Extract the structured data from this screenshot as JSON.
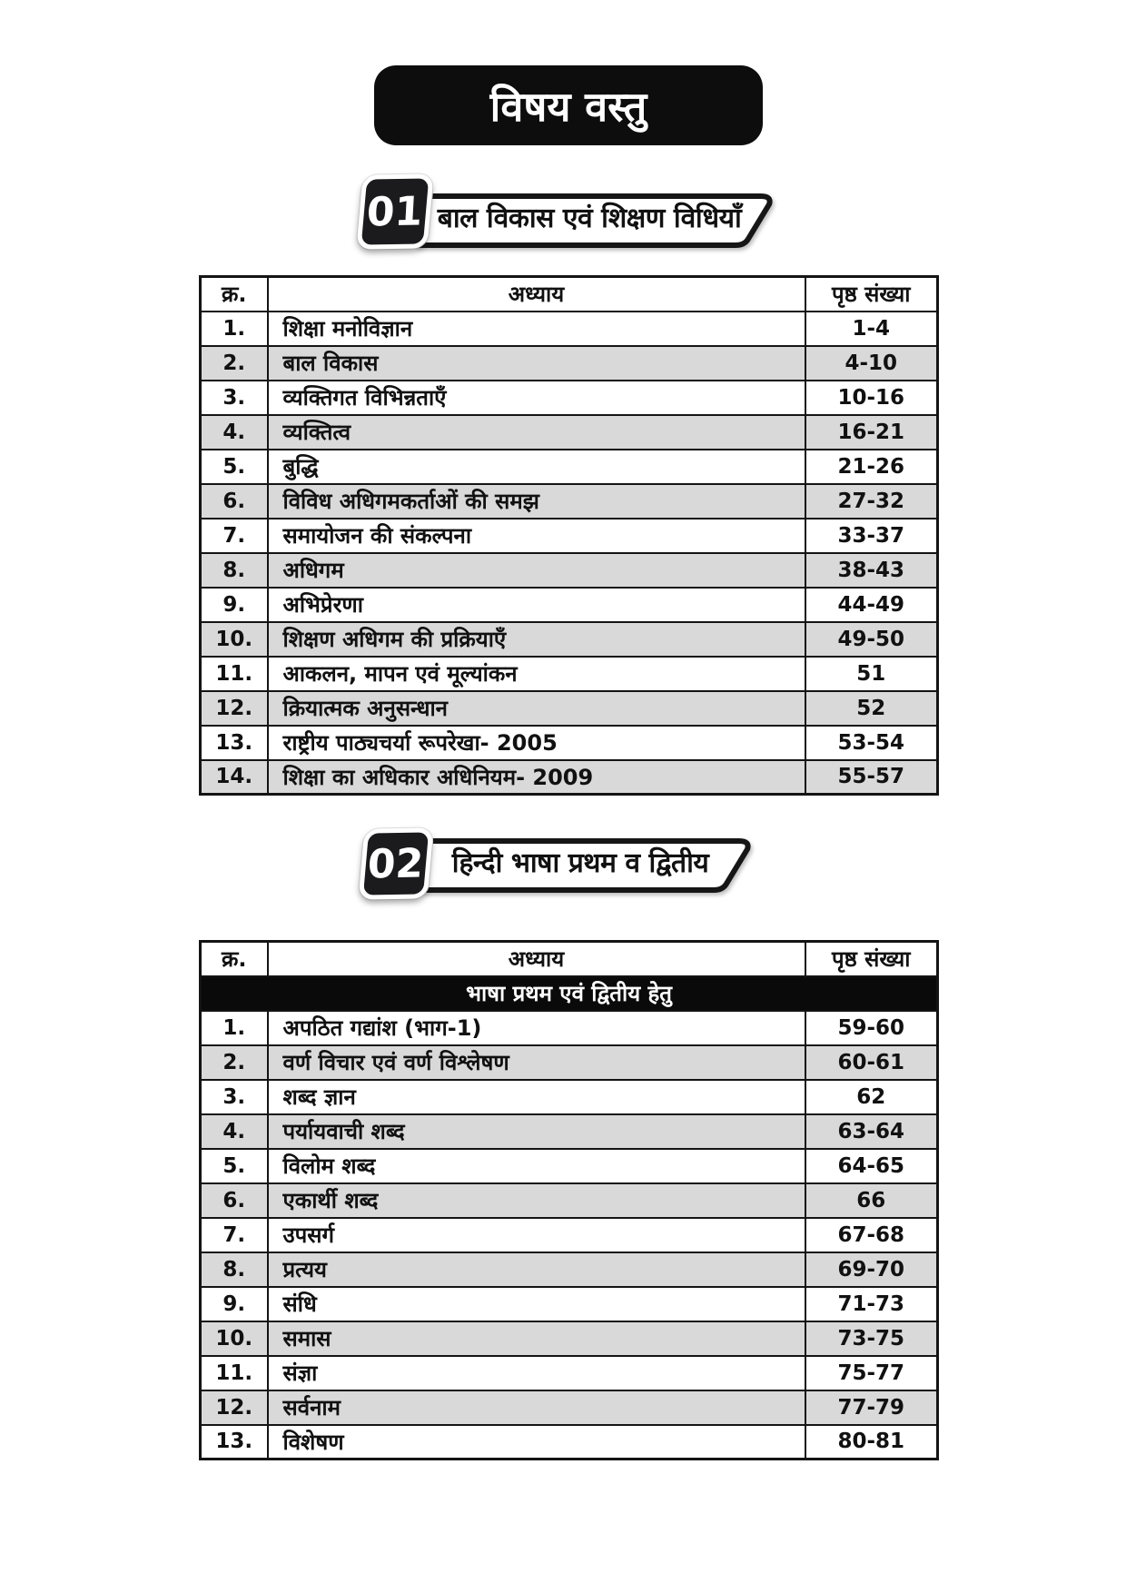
{
  "page": {
    "title": "विषय वस्तु"
  },
  "table_headers": {
    "serial": "क्र.",
    "chapter": "अध्याय",
    "pages": "पृष्ठ संख्या"
  },
  "sections": [
    {
      "number": "01",
      "title": "बाल विकास एवं शिक्षण विधियाँ",
      "rows": [
        {
          "sn": "1.",
          "chapter": "शिक्षा मनोविज्ञान",
          "pages": "1-4"
        },
        {
          "sn": "2.",
          "chapter": "बाल विकास",
          "pages": "4-10"
        },
        {
          "sn": "3.",
          "chapter": "व्यक्तिगत विभिन्नताएँ",
          "pages": "10-16"
        },
        {
          "sn": "4.",
          "chapter": "व्यक्तित्व",
          "pages": "16-21"
        },
        {
          "sn": "5.",
          "chapter": "बुद्धि",
          "pages": "21-26"
        },
        {
          "sn": "6.",
          "chapter": "विविध अधिगमकर्ताओं की समझ",
          "pages": "27-32"
        },
        {
          "sn": "7.",
          "chapter": "समायोजन की संकल्पना",
          "pages": "33-37"
        },
        {
          "sn": "8.",
          "chapter": "अधिगम",
          "pages": "38-43"
        },
        {
          "sn": "9.",
          "chapter": "अभिप्रेरणा",
          "pages": "44-49"
        },
        {
          "sn": "10.",
          "chapter": "शिक्षण अधिगम की प्रक्रियाएँ",
          "pages": "49-50"
        },
        {
          "sn": "11.",
          "chapter": "आकलन, मापन एवं मूल्यांकन",
          "pages": "51"
        },
        {
          "sn": "12.",
          "chapter": "क्रियात्मक अनुसन्धान",
          "pages": "52"
        },
        {
          "sn": "13.",
          "chapter": "राष्ट्रीय पाठ्यचर्या रूपरेखा- 2005",
          "pages": "53-54"
        },
        {
          "sn": "14.",
          "chapter": "शिक्षा का अधिकार अधिनियम- 2009",
          "pages": "55-57"
        }
      ]
    },
    {
      "number": "02",
      "title": "हिन्दी भाषा प्रथम व द्वितीय",
      "subheader": "भाषा प्रथम एवं द्वितीय हेतु",
      "rows": [
        {
          "sn": "1.",
          "chapter": "अपठित गद्यांश (भाग-1)",
          "pages": "59-60"
        },
        {
          "sn": "2.",
          "chapter": "वर्ण विचार एवं वर्ण विश्लेषण",
          "pages": "60-61"
        },
        {
          "sn": "3.",
          "chapter": "शब्द ज्ञान",
          "pages": "62"
        },
        {
          "sn": "4.",
          "chapter": "पर्यायवाची शब्द",
          "pages": "63-64"
        },
        {
          "sn": "5.",
          "chapter": "विलोम शब्द",
          "pages": "64-65"
        },
        {
          "sn": "6.",
          "chapter": "एकार्थी शब्द",
          "pages": "66"
        },
        {
          "sn": "7.",
          "chapter": "उपसर्ग",
          "pages": "67-68"
        },
        {
          "sn": "8.",
          "chapter": "प्रत्यय",
          "pages": "69-70"
        },
        {
          "sn": "9.",
          "chapter": "संधि",
          "pages": "71-73"
        },
        {
          "sn": "10.",
          "chapter": "समास",
          "pages": "73-75"
        },
        {
          "sn": "11.",
          "chapter": "संज्ञा",
          "pages": "75-77"
        },
        {
          "sn": "12.",
          "chapter": "सर्वनाम",
          "pages": "77-79"
        },
        {
          "sn": "13.",
          "chapter": "विशेषण",
          "pages": "80-81"
        }
      ]
    }
  ]
}
